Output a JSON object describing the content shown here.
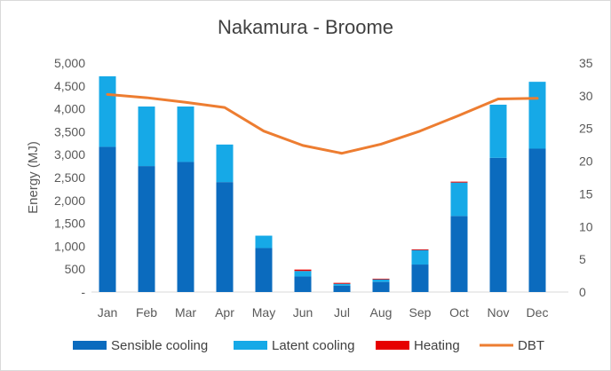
{
  "chart_data": {
    "type": "bar",
    "title": "Nakamura - Broome",
    "categories": [
      "Jan",
      "Feb",
      "Mar",
      "Apr",
      "May",
      "Jun",
      "Jul",
      "Aug",
      "Sep",
      "Oct",
      "Nov",
      "Dec"
    ],
    "series": [
      {
        "name": "Sensible cooling",
        "kind": "bar-stacked",
        "axis": "left",
        "color": "#0B6BBE",
        "values": [
          3170,
          2750,
          2840,
          2400,
          960,
          340,
          140,
          220,
          600,
          1660,
          2930,
          3130
        ]
      },
      {
        "name": "Latent cooling",
        "kind": "bar-stacked",
        "axis": "left",
        "color": "#16A9E7",
        "values": [
          1540,
          1300,
          1210,
          820,
          270,
          120,
          40,
          60,
          320,
          730,
          1160,
          1460
        ]
      },
      {
        "name": "Heating",
        "kind": "bar-stacked",
        "axis": "left",
        "color": "#E60000",
        "values": [
          0,
          0,
          0,
          0,
          0,
          30,
          20,
          10,
          10,
          20,
          0,
          0
        ]
      },
      {
        "name": "DBT",
        "kind": "line",
        "axis": "right",
        "color": "#ED7D31",
        "values": [
          30.2,
          29.7,
          29.0,
          28.2,
          24.6,
          22.4,
          21.2,
          22.6,
          24.6,
          27.0,
          29.5,
          29.6
        ]
      }
    ],
    "ylabel": "Energy (MJ)",
    "ylim": [
      0,
      5000
    ],
    "y_ticks": [
      "-",
      "500",
      "1,000",
      "1,500",
      "2,000",
      "2,500",
      "3,000",
      "3,500",
      "4,000",
      "4,500",
      "5,000"
    ],
    "y2lim": [
      0,
      35
    ],
    "y2_ticks": [
      "0",
      "5",
      "10",
      "15",
      "20",
      "25",
      "30",
      "35"
    ],
    "grid": false,
    "legend_position": "bottom"
  }
}
